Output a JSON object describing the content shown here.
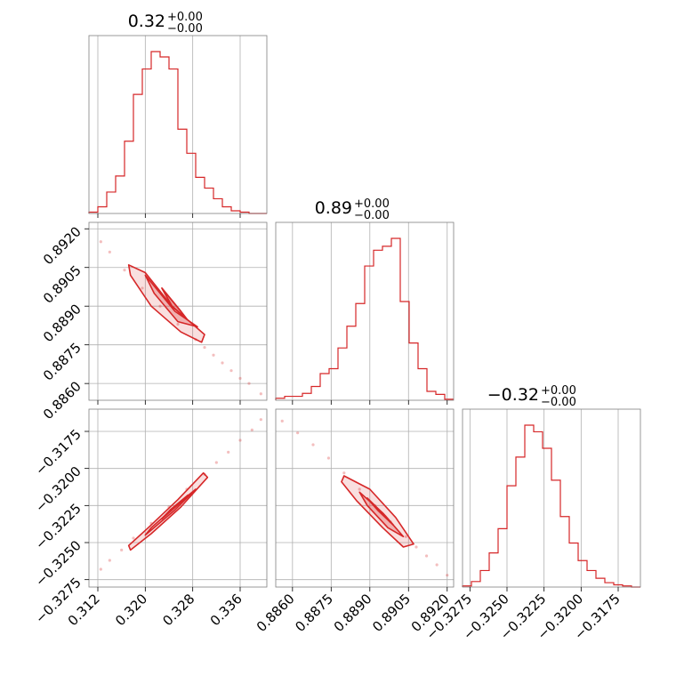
{
  "colors": {
    "accent": "#d62728",
    "grid": "#b0b0b0",
    "frame": "#808080"
  },
  "chart_data": {
    "type": "corner",
    "titles": [
      {
        "value": "0.32",
        "sup": "+0.00",
        "sub": "−0.00"
      },
      {
        "value": "0.89",
        "sup": "+0.00",
        "sub": "−0.00"
      },
      {
        "value": "−0.32",
        "sup": "+0.00",
        "sub": "−0.00"
      }
    ],
    "params": [
      {
        "range": [
          0.3105,
          0.3405
        ],
        "ticks": [
          0.312,
          0.32,
          0.328,
          0.336
        ],
        "tick_labels": [
          "0.312",
          "0.320",
          "0.328",
          "0.336"
        ]
      },
      {
        "range": [
          0.88535,
          0.89225
        ],
        "ticks": [
          0.886,
          0.8875,
          0.889,
          0.8905,
          0.892
        ],
        "tick_labels": [
          "0.8860",
          "0.8875",
          "0.8890",
          "0.8905",
          "0.8920"
        ]
      },
      {
        "range": [
          -0.328,
          -0.316
        ],
        "ticks": [
          -0.3275,
          -0.325,
          -0.3225,
          -0.32,
          -0.3175
        ],
        "tick_labels": [
          "−0.3275",
          "−0.3250",
          "−0.3225",
          "−0.3200",
          "−0.3175"
        ]
      }
    ],
    "histograms": [
      {
        "bins": [
          0.3105,
          0.312,
          0.3135,
          0.315,
          0.3165,
          0.318,
          0.3195,
          0.321,
          0.3225,
          0.324,
          0.3255,
          0.327,
          0.3285,
          0.33,
          0.3315,
          0.333,
          0.3345,
          0.336,
          0.3375,
          0.339,
          0.3405
        ],
        "counts": [
          1,
          5,
          16,
          28,
          54,
          89,
          108,
          121,
          117,
          108,
          63,
          45,
          27,
          19,
          11,
          5,
          2,
          1,
          0,
          0
        ]
      },
      {
        "bins": [
          0.88535,
          0.885695,
          0.88604,
          0.886385,
          0.88673,
          0.887075,
          0.88742,
          0.887765,
          0.88811,
          0.888455,
          0.8888,
          0.889145,
          0.88949,
          0.889835,
          0.89018,
          0.890525,
          0.89087,
          0.891215,
          0.89156,
          0.891905,
          0.89225
        ],
        "counts": [
          2,
          4,
          4,
          7,
          14,
          27,
          32,
          53,
          75,
          98,
          136,
          152,
          156,
          164,
          100,
          58,
          32,
          9,
          6,
          1
        ]
      },
      {
        "bins": [
          -0.328,
          -0.3274,
          -0.3268,
          -0.3262,
          -0.3256,
          -0.325,
          -0.3244,
          -0.3238,
          -0.3232,
          -0.3226,
          -0.322,
          -0.3214,
          -0.3208,
          -0.3202,
          -0.3196,
          -0.319,
          -0.3184,
          -0.3178,
          -0.3172,
          -0.3166,
          -0.316
        ],
        "counts": [
          1,
          5,
          15,
          31,
          53,
          92,
          118,
          147,
          141,
          126,
          97,
          64,
          40,
          24,
          15,
          8,
          4,
          2,
          1,
          0
        ]
      }
    ],
    "pairs": [
      {
        "x_param": 0,
        "y_param": 1,
        "relation": "negative",
        "points": [
          [
            0.3125,
            0.8915
          ],
          [
            0.314,
            0.8911
          ],
          [
            0.3165,
            0.8904
          ],
          [
            0.3195,
            0.8897
          ],
          [
            0.3225,
            0.889
          ],
          [
            0.3255,
            0.8883
          ],
          [
            0.3285,
            0.8877
          ],
          [
            0.33,
            0.8874
          ],
          [
            0.3315,
            0.8871
          ],
          [
            0.333,
            0.8868
          ],
          [
            0.3345,
            0.8865
          ],
          [
            0.336,
            0.8862
          ],
          [
            0.3375,
            0.886
          ],
          [
            0.3395,
            0.8856
          ]
        ],
        "contour_outer": [
          [
            0.3172,
            0.8906
          ],
          [
            0.32,
            0.8903
          ],
          [
            0.3245,
            0.889
          ],
          [
            0.33,
            0.8879
          ],
          [
            0.3295,
            0.8876
          ],
          [
            0.326,
            0.888
          ],
          [
            0.321,
            0.889
          ],
          [
            0.3175,
            0.8902
          ]
        ],
        "contour_mid": [
          [
            0.32,
            0.8902
          ],
          [
            0.325,
            0.8888
          ],
          [
            0.3288,
            0.8882
          ],
          [
            0.3255,
            0.8884
          ],
          [
            0.3215,
            0.8895
          ]
        ],
        "contour_inner": [
          [
            0.3228,
            0.8897
          ],
          [
            0.326,
            0.8888
          ],
          [
            0.327,
            0.8885
          ],
          [
            0.3245,
            0.889
          ]
        ]
      },
      {
        "x_param": 0,
        "y_param": 2,
        "relation": "positive",
        "points": [
          [
            0.3125,
            -0.3268
          ],
          [
            0.314,
            -0.3262
          ],
          [
            0.316,
            -0.3255
          ],
          [
            0.318,
            -0.3247
          ],
          [
            0.321,
            -0.3237
          ],
          [
            0.324,
            -0.3226
          ],
          [
            0.327,
            -0.3214
          ],
          [
            0.33,
            -0.3204
          ],
          [
            0.332,
            -0.3196
          ],
          [
            0.334,
            -0.3189
          ],
          [
            0.336,
            -0.3181
          ],
          [
            0.338,
            -0.3174
          ],
          [
            0.3395,
            -0.3167
          ]
        ],
        "contour_outer": [
          [
            0.3175,
            -0.3255
          ],
          [
            0.321,
            -0.3244
          ],
          [
            0.326,
            -0.3226
          ],
          [
            0.3305,
            -0.3206
          ],
          [
            0.3298,
            -0.3203
          ],
          [
            0.3255,
            -0.3221
          ],
          [
            0.3205,
            -0.324
          ],
          [
            0.3172,
            -0.3252
          ]
        ],
        "contour_mid": [
          [
            0.32,
            -0.3245
          ],
          [
            0.325,
            -0.3228
          ],
          [
            0.3285,
            -0.3214
          ],
          [
            0.3255,
            -0.3224
          ],
          [
            0.321,
            -0.324
          ]
        ],
        "contour_inner": [
          [
            0.3228,
            -0.3234
          ],
          [
            0.3262,
            -0.3222
          ],
          [
            0.3272,
            -0.3218
          ],
          [
            0.3242,
            -0.3228
          ]
        ]
      },
      {
        "x_param": 1,
        "y_param": 2,
        "relation": "negative",
        "points": [
          [
            0.8856,
            -0.3168
          ],
          [
            0.8862,
            -0.3176
          ],
          [
            0.8868,
            -0.3184
          ],
          [
            0.8874,
            -0.3193
          ],
          [
            0.888,
            -0.3203
          ],
          [
            0.8886,
            -0.3214
          ],
          [
            0.8892,
            -0.3225
          ],
          [
            0.8898,
            -0.3236
          ],
          [
            0.8904,
            -0.3246
          ],
          [
            0.8908,
            -0.3253
          ],
          [
            0.8912,
            -0.3259
          ],
          [
            0.8916,
            -0.3265
          ],
          [
            0.892,
            -0.3272
          ]
        ],
        "contour_outer": [
          [
            0.888,
            -0.3205
          ],
          [
            0.889,
            -0.3214
          ],
          [
            0.89,
            -0.3233
          ],
          [
            0.8907,
            -0.3251
          ],
          [
            0.8903,
            -0.3253
          ],
          [
            0.8895,
            -0.324
          ],
          [
            0.8885,
            -0.3222
          ],
          [
            0.8879,
            -0.3209
          ]
        ],
        "contour_mid": [
          [
            0.8886,
            -0.3216
          ],
          [
            0.8895,
            -0.323
          ],
          [
            0.8903,
            -0.3246
          ],
          [
            0.8897,
            -0.324
          ],
          [
            0.8889,
            -0.3225
          ]
        ],
        "contour_inner": [
          [
            0.8889,
            -0.322
          ],
          [
            0.8896,
            -0.3232
          ],
          [
            0.8899,
            -0.3238
          ],
          [
            0.8893,
            -0.3228
          ]
        ]
      }
    ],
    "grid": true
  }
}
